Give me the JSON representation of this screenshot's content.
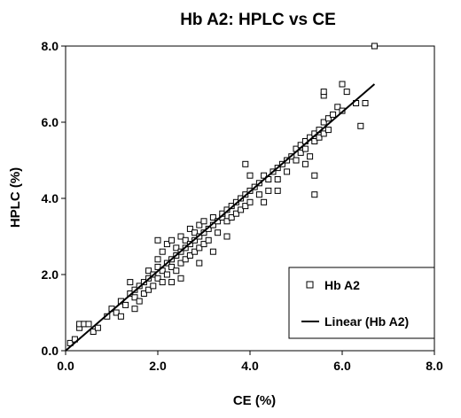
{
  "chart_data": {
    "type": "scatter",
    "title": "Hb A2: HPLC vs CE",
    "xlabel": "CE (%)",
    "ylabel": "HPLC (%)",
    "xlim": [
      0,
      8
    ],
    "ylim": [
      0,
      8
    ],
    "x_ticks": [
      "0.0",
      "2.0",
      "4.0",
      "6.0",
      "8.0"
    ],
    "y_ticks": [
      "0.0",
      "2.0",
      "4.0",
      "6.0",
      "8.0"
    ],
    "grid": false,
    "legend_position": "bottom-right",
    "series": [
      {
        "name": "Hb A2",
        "marker": "open-square",
        "color": "#000000",
        "points": [
          [
            0.1,
            0.2
          ],
          [
            0.2,
            0.3
          ],
          [
            0.3,
            0.6
          ],
          [
            0.3,
            0.7
          ],
          [
            0.4,
            0.7
          ],
          [
            0.5,
            0.7
          ],
          [
            0.6,
            0.5
          ],
          [
            0.7,
            0.6
          ],
          [
            0.9,
            0.9
          ],
          [
            1.0,
            1.1
          ],
          [
            1.1,
            1.0
          ],
          [
            1.2,
            1.3
          ],
          [
            1.3,
            1.2
          ],
          [
            1.4,
            1.5
          ],
          [
            1.5,
            1.4
          ],
          [
            1.5,
            1.6
          ],
          [
            1.6,
            1.3
          ],
          [
            1.6,
            1.7
          ],
          [
            1.7,
            1.8
          ],
          [
            1.7,
            1.5
          ],
          [
            1.8,
            1.9
          ],
          [
            1.8,
            1.6
          ],
          [
            1.8,
            2.1
          ],
          [
            1.9,
            2.0
          ],
          [
            1.9,
            1.7
          ],
          [
            2.0,
            2.2
          ],
          [
            2.0,
            1.9
          ],
          [
            2.0,
            2.4
          ],
          [
            2.1,
            2.1
          ],
          [
            2.1,
            2.6
          ],
          [
            2.1,
            1.8
          ],
          [
            2.2,
            2.3
          ],
          [
            2.2,
            2.0
          ],
          [
            2.2,
            2.8
          ],
          [
            2.3,
            2.4
          ],
          [
            2.3,
            2.2
          ],
          [
            2.3,
            2.9
          ],
          [
            2.4,
            2.5
          ],
          [
            2.4,
            2.1
          ],
          [
            2.4,
            2.7
          ],
          [
            2.5,
            2.6
          ],
          [
            2.5,
            2.3
          ],
          [
            2.5,
            3.0
          ],
          [
            2.6,
            2.7
          ],
          [
            2.6,
            2.4
          ],
          [
            2.6,
            2.9
          ],
          [
            2.7,
            2.8
          ],
          [
            2.7,
            2.5
          ],
          [
            2.7,
            3.2
          ],
          [
            2.8,
            2.9
          ],
          [
            2.8,
            2.6
          ],
          [
            2.8,
            3.1
          ],
          [
            2.9,
            3.0
          ],
          [
            2.9,
            2.7
          ],
          [
            2.9,
            3.3
          ],
          [
            3.0,
            3.1
          ],
          [
            3.0,
            2.8
          ],
          [
            3.0,
            3.4
          ],
          [
            3.1,
            3.2
          ],
          [
            3.1,
            2.9
          ],
          [
            3.2,
            3.3
          ],
          [
            3.2,
            3.5
          ],
          [
            3.3,
            3.4
          ],
          [
            3.3,
            3.1
          ],
          [
            3.4,
            3.5
          ],
          [
            3.4,
            3.6
          ],
          [
            3.5,
            3.7
          ],
          [
            3.5,
            3.4
          ],
          [
            3.6,
            3.8
          ],
          [
            3.6,
            3.5
          ],
          [
            3.7,
            3.9
          ],
          [
            3.7,
            3.6
          ],
          [
            3.8,
            4.0
          ],
          [
            3.8,
            3.7
          ],
          [
            3.9,
            4.1
          ],
          [
            3.9,
            3.8
          ],
          [
            4.0,
            4.2
          ],
          [
            4.0,
            3.9
          ],
          [
            4.1,
            4.3
          ],
          [
            4.2,
            4.4
          ],
          [
            4.2,
            4.1
          ],
          [
            4.3,
            4.6
          ],
          [
            4.4,
            4.5
          ],
          [
            4.4,
            4.2
          ],
          [
            4.5,
            4.7
          ],
          [
            4.6,
            4.8
          ],
          [
            4.6,
            4.5
          ],
          [
            4.7,
            4.9
          ],
          [
            4.8,
            5.0
          ],
          [
            4.8,
            4.7
          ],
          [
            4.9,
            5.1
          ],
          [
            5.0,
            5.3
          ],
          [
            5.0,
            5.0
          ],
          [
            5.1,
            5.4
          ],
          [
            5.1,
            5.2
          ],
          [
            5.2,
            5.5
          ],
          [
            5.2,
            5.3
          ],
          [
            5.3,
            5.6
          ],
          [
            5.3,
            5.1
          ],
          [
            5.4,
            5.7
          ],
          [
            5.4,
            5.5
          ],
          [
            5.5,
            5.8
          ],
          [
            5.5,
            5.6
          ],
          [
            5.6,
            6.0
          ],
          [
            5.6,
            5.7
          ],
          [
            5.7,
            6.1
          ],
          [
            5.7,
            5.8
          ],
          [
            5.8,
            6.2
          ],
          [
            5.9,
            6.4
          ],
          [
            6.0,
            6.3
          ],
          [
            6.0,
            7.0
          ],
          [
            6.1,
            6.8
          ],
          [
            6.3,
            6.5
          ],
          [
            6.4,
            5.9
          ],
          [
            6.5,
            6.5
          ],
          [
            6.7,
            8.0
          ],
          [
            5.4,
            4.1
          ],
          [
            5.4,
            4.6
          ],
          [
            5.6,
            6.7
          ],
          [
            5.6,
            6.8
          ],
          [
            3.9,
            4.9
          ],
          [
            2.5,
            1.9
          ],
          [
            1.5,
            1.1
          ],
          [
            3.2,
            2.6
          ],
          [
            2.9,
            2.3
          ],
          [
            4.6,
            4.2
          ],
          [
            5.2,
            4.9
          ],
          [
            1.2,
            0.9
          ],
          [
            1.4,
            1.8
          ],
          [
            3.5,
            3.0
          ],
          [
            2.0,
            2.9
          ],
          [
            2.3,
            1.8
          ],
          [
            4.0,
            4.6
          ],
          [
            4.3,
            3.9
          ]
        ]
      }
    ],
    "trendline": {
      "name": "Linear (Hb A2)",
      "type": "linear",
      "color": "#000000",
      "x_range": [
        0.0,
        6.7
      ],
      "y_range": [
        0.0,
        7.0
      ]
    }
  }
}
